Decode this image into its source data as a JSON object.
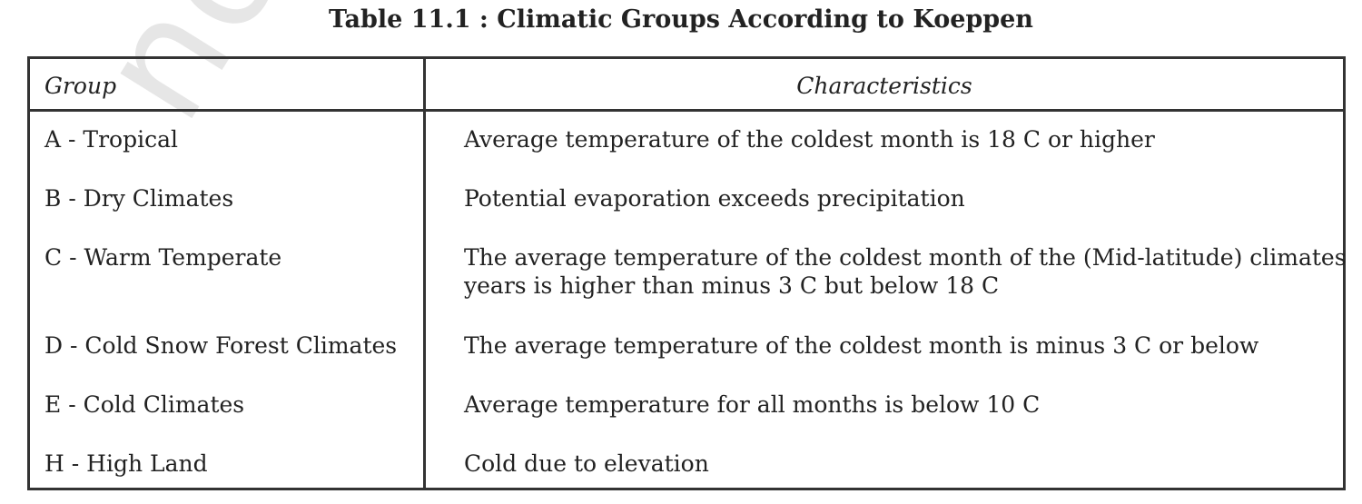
{
  "watermark": "not to",
  "title": "Table 11.1 : Climatic Groups According to Koeppen",
  "table": {
    "headers": [
      "Group",
      "Characteristics"
    ],
    "rows": [
      {
        "group": "A - Tropical",
        "line1": "Average temperature of the coldest month is 18  C or higher",
        "line2": ""
      },
      {
        "group": "B - Dry Climates",
        "line1": "Potential evaporation exceeds precipitation",
        "line2": ""
      },
      {
        "group": "C - Warm Temperate",
        "line1": "The average temperature of the coldest month of the (Mid-latitude) climates",
        "line2": "years is higher than minus 3 C but below 18 C"
      },
      {
        "group": "D - Cold Snow Forest Climates",
        "line1": "The average  temperature of the coldest month is  minus 3  C or below",
        "line2": ""
      },
      {
        "group": "E - Cold Climates",
        "line1": "Average temperature for all months is below 10  C",
        "line2": ""
      },
      {
        "group": "H - High Land",
        "line1": "Cold due to elevation",
        "line2": ""
      }
    ]
  }
}
